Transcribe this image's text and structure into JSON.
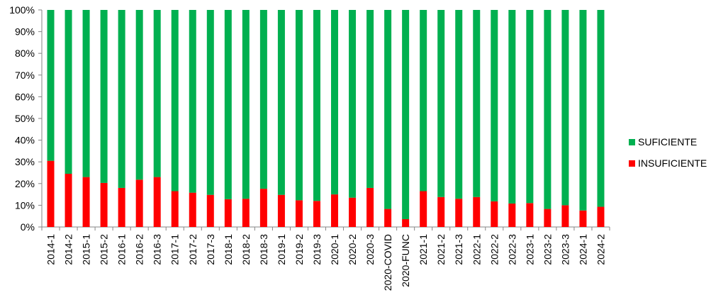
{
  "chart_data": {
    "type": "bar",
    "stacked": true,
    "percent_stacked": true,
    "categories": [
      "2014-1",
      "2014-2",
      "2015-1",
      "2015-2",
      "2016-1",
      "2016-2",
      "2016-3",
      "2017-1",
      "2017-2",
      "2017-3",
      "2018-1",
      "2018-2",
      "2018-3",
      "2019-1",
      "2019-2",
      "2019-3",
      "2020-1",
      "2020-2",
      "2020-3",
      "2020-COVID",
      "2020-FUNC",
      "2021-1",
      "2021-2",
      "2021-3",
      "2022-1",
      "2022-2",
      "2022-3",
      "2023-1",
      "2023-2",
      "2023-3",
      "2024-1",
      "2024-2"
    ],
    "series": [
      {
        "name": "INSUFICIENTE",
        "color": "#FF0000",
        "values": [
          30.5,
          24.5,
          23.0,
          20.3,
          18.0,
          21.8,
          23.0,
          16.5,
          15.8,
          14.8,
          12.8,
          13.0,
          17.6,
          14.8,
          12.3,
          12.0,
          15.0,
          13.5,
          18.0,
          8.3,
          3.6,
          16.5,
          13.8,
          13.0,
          13.8,
          11.8,
          10.8,
          11.0,
          8.3,
          10.0,
          7.6,
          9.3
        ]
      },
      {
        "name": "SUFICIENTE",
        "color": "#00B050",
        "values": [
          69.5,
          75.5,
          77.0,
          79.7,
          82.0,
          78.2,
          77.0,
          83.5,
          84.2,
          85.2,
          87.2,
          87.0,
          82.4,
          85.2,
          87.7,
          88.0,
          85.0,
          86.5,
          82.0,
          91.7,
          96.4,
          83.5,
          86.2,
          87.0,
          86.2,
          88.2,
          89.2,
          89.0,
          91.7,
          90.0,
          92.4,
          90.7
        ]
      }
    ],
    "y_ticks": [
      "0%",
      "10%",
      "20%",
      "30%",
      "40%",
      "50%",
      "60%",
      "70%",
      "80%",
      "90%",
      "100%"
    ],
    "ylim": [
      0,
      100
    ],
    "grid": false,
    "legend_position": "right",
    "legend": [
      {
        "label": "SUFICIENTE",
        "color": "#00B050"
      },
      {
        "label": "INSUFICIENTE",
        "color": "#FF0000"
      }
    ],
    "title": "",
    "xlabel": "",
    "ylabel": ""
  }
}
